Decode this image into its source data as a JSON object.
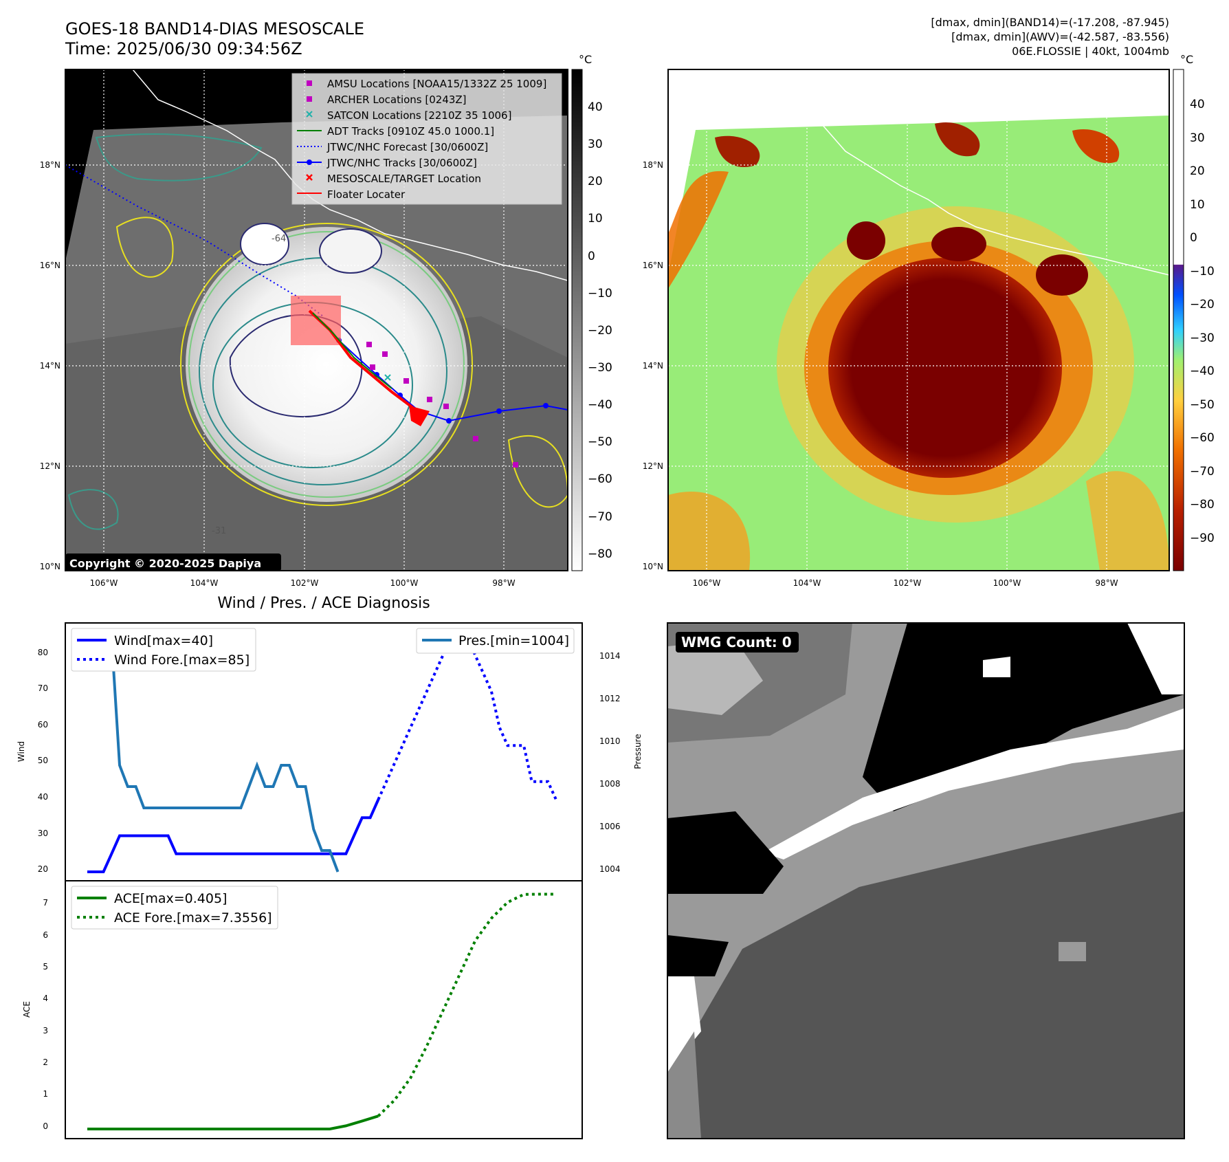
{
  "header": {
    "title_line1": "GOES-18 BAND14-DIAS MESOSCALE",
    "title_line2": "Time: 2025/06/30 09:34:56Z",
    "info_line1": "[dmax, dmin](BAND14)=(-17.208, -87.945)",
    "info_line2": "[dmax, dmin](AWV)=(-42.587, -83.556)",
    "info_line3": "06E.FLOSSIE | 40kt, 1004mb"
  },
  "map_axes": {
    "lon_ticks": [
      "106°W",
      "104°W",
      "102°W",
      "100°W",
      "98°W"
    ],
    "lat_ticks": [
      "18°N",
      "16°N",
      "14°N",
      "12°N",
      "10°N"
    ]
  },
  "ir_panel": {
    "copyright": "Copyright © 2020-2025 Dapiya",
    "colorbar_unit": "°C",
    "colorbar_ticks": [
      "40",
      "30",
      "20",
      "10",
      "0",
      "−10",
      "−20",
      "−30",
      "−40",
      "−50",
      "−60",
      "−70",
      "−80"
    ],
    "legend": [
      {
        "marker": "square",
        "color": "#c000c0",
        "label": "AMSU Locations [NOAA15/1332Z 25 1009]"
      },
      {
        "marker": "square",
        "color": "#c000c0",
        "label": "ARCHER Locations [0243Z]"
      },
      {
        "marker": "x",
        "color": "#20b2aa",
        "label": "SATCON Locations [2210Z 35 1006]"
      },
      {
        "marker": "line",
        "color": "#008000",
        "label": "ADT Tracks [0910Z 45.0 1000.1]"
      },
      {
        "marker": "dotted",
        "color": "#0000ff",
        "label": "JTWC/NHC Forecast [30/0600Z]"
      },
      {
        "marker": "line-dot",
        "color": "#0000ff",
        "label": "JTWC/NHC Tracks [30/0600Z]"
      },
      {
        "marker": "x",
        "color": "#ff0000",
        "label": "MESOSCALE/TARGET Location"
      },
      {
        "marker": "line",
        "color": "#ff0000",
        "label": "Floater Locater"
      }
    ],
    "contour_labels": [
      "-64",
      "-31"
    ]
  },
  "awv_panel": {
    "colorbar_unit": "°C",
    "colorbar_ticks": [
      "40",
      "30",
      "20",
      "10",
      "0",
      "−10",
      "−20",
      "−30",
      "−40",
      "−50",
      "−60",
      "−70",
      "−80",
      "−90"
    ]
  },
  "wind_panel": {
    "title": "Wind / Pres. / ACE Diagnosis",
    "ylabel_left": "Wind",
    "ylabel_right": "Pressure",
    "legend_wind": "Wind[max=40]",
    "legend_wind_fore": "Wind Fore.[max=85]",
    "legend_pres": "Pres.[min=1004]",
    "yticks_left": [
      "80",
      "70",
      "60",
      "50",
      "40",
      "30",
      "20"
    ],
    "yticks_right": [
      "1014",
      "1012",
      "1010",
      "1008",
      "1006",
      "1004"
    ]
  },
  "ace_panel": {
    "ylabel": "ACE",
    "legend_ace": "ACE[max=0.405]",
    "legend_ace_fore": "ACE Fore.[max=7.3556]",
    "yticks": [
      "7",
      "6",
      "5",
      "4",
      "3",
      "2",
      "1",
      "0"
    ]
  },
  "wmg_panel": {
    "label": "WMG Count: 0"
  },
  "chart_data": [
    {
      "type": "line",
      "title": "Wind / Pres. / ACE Diagnosis",
      "ylabel": "Wind",
      "ylim": [
        18,
        86
      ],
      "y2label": "Pressure",
      "y2lim": [
        1003.5,
        1015.5
      ],
      "x": [
        0,
        1,
        2,
        3,
        4,
        5,
        6,
        7,
        8,
        9,
        10,
        11,
        12,
        13,
        14,
        15,
        16,
        17,
        18,
        19,
        20,
        21,
        22,
        23,
        24,
        25,
        26,
        27,
        28,
        29,
        30,
        31,
        32,
        33,
        34,
        35,
        36,
        37,
        38,
        39,
        40,
        41,
        42,
        43,
        44,
        45,
        46,
        47,
        48,
        49,
        50,
        51,
        52,
        53,
        54,
        55,
        56,
        57,
        58
      ],
      "series": [
        {
          "name": "Wind[max=40]",
          "axis": "left",
          "style": "solid",
          "color": "#0000ff",
          "values": [
            20,
            20,
            20,
            25,
            30,
            30,
            30,
            30,
            30,
            30,
            30,
            25,
            25,
            25,
            25,
            25,
            25,
            25,
            25,
            25,
            25,
            25,
            25,
            25,
            25,
            25,
            25,
            25,
            25,
            25,
            25,
            25,
            25,
            30,
            35,
            35,
            40,
            null,
            null,
            null,
            null,
            null,
            null,
            null,
            null,
            null,
            null,
            null,
            null,
            null,
            null,
            null,
            null,
            null,
            null,
            null,
            null,
            null,
            null
          ]
        },
        {
          "name": "Wind Fore.[max=85]",
          "axis": "left",
          "style": "dotted",
          "color": "#0000ff",
          "values": [
            null,
            null,
            null,
            null,
            null,
            null,
            null,
            null,
            null,
            null,
            null,
            null,
            null,
            null,
            null,
            null,
            null,
            null,
            null,
            null,
            null,
            null,
            null,
            null,
            null,
            null,
            null,
            null,
            null,
            null,
            null,
            null,
            null,
            null,
            null,
            null,
            40,
            45,
            50,
            55,
            60,
            65,
            70,
            75,
            80,
            85,
            85,
            85,
            80,
            75,
            70,
            60,
            55,
            55,
            55,
            45,
            45,
            45,
            40
          ]
        },
        {
          "name": "Pres.[min=1004]",
          "axis": "right",
          "style": "solid",
          "color": "#1f77b4",
          "values": [
            1015,
            1015,
            1015,
            1015,
            1009,
            1008,
            1008,
            1007,
            1007,
            1007,
            1007,
            1007,
            1007,
            1007,
            1007,
            1007,
            1007,
            1007,
            1007,
            1007,
            1008,
            1009,
            1008,
            1008,
            1009,
            1009,
            1008,
            1008,
            1006,
            1005,
            1005,
            1004,
            null,
            null,
            null,
            null,
            null,
            null,
            null,
            null,
            null,
            null,
            null,
            null,
            null,
            null,
            null,
            null,
            null,
            null,
            null,
            null,
            null,
            null,
            null,
            null,
            null,
            null,
            null
          ]
        }
      ]
    },
    {
      "type": "line",
      "ylabel": "ACE",
      "ylim": [
        -0.3,
        7.6
      ],
      "x": [
        0,
        2,
        4,
        6,
        8,
        10,
        12,
        14,
        16,
        18,
        20,
        22,
        24,
        26,
        28,
        30,
        32,
        34,
        36,
        38,
        40,
        42,
        44,
        46,
        48,
        50,
        52,
        54,
        56,
        58
      ],
      "series": [
        {
          "name": "ACE[max=0.405]",
          "style": "solid",
          "color": "#008000",
          "values": [
            0,
            0,
            0,
            0,
            0,
            0,
            0,
            0,
            0,
            0,
            0,
            0,
            0,
            0,
            0,
            0,
            0.1,
            0.25,
            0.405,
            null,
            null,
            null,
            null,
            null,
            null,
            null,
            null,
            null,
            null,
            null
          ]
        },
        {
          "name": "ACE Fore.[max=7.3556]",
          "style": "dotted",
          "color": "#008000",
          "values": [
            null,
            null,
            null,
            null,
            null,
            null,
            null,
            null,
            null,
            null,
            null,
            null,
            null,
            null,
            null,
            null,
            null,
            null,
            0.405,
            0.9,
            1.6,
            2.6,
            3.7,
            4.8,
            5.9,
            6.6,
            7.1,
            7.35,
            7.3556,
            7.3556
          ]
        }
      ]
    }
  ]
}
